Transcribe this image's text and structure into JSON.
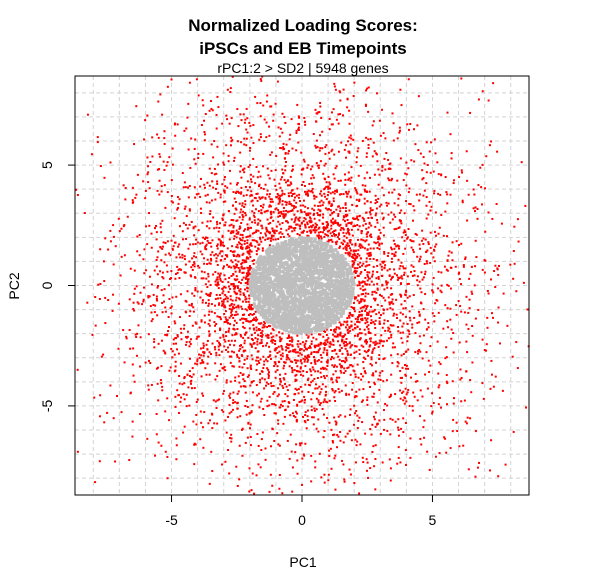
{
  "chart_data": {
    "type": "scatter",
    "title": [
      "Normalized Loading Scores:",
      "iPSCs and EB Timepoints"
    ],
    "subtitle": "rPC1:2 > SD2 | 5948 genes",
    "xlabel": "PC1",
    "ylabel": "PC2",
    "xlim": [
      -8.7,
      8.7
    ],
    "ylim": [
      -8.7,
      8.7
    ],
    "x_ticks": [
      -5,
      0,
      5
    ],
    "y_ticks": [
      -5,
      0,
      5
    ],
    "x_tick_labels": [
      "-5",
      "0",
      "5"
    ],
    "y_tick_labels": [
      "-5",
      "0",
      "5"
    ],
    "grid": true,
    "gene_count": 5948,
    "sd2_radius": 2.0,
    "series": [
      {
        "name": "genes with rPC1:2 > SD2",
        "color": "#ff0000",
        "approx_count": 3400,
        "distribution": "radial, dense just outside SD2 circle and thinning toward plot edges",
        "radius_range": [
          2.0,
          12.0
        ]
      },
      {
        "name": "genes within SD2",
        "color": "#bebebe",
        "approx_count": 2548,
        "distribution": "dense filled disk centered at origin",
        "radius_range": [
          0,
          2.0
        ]
      }
    ]
  },
  "colors": {
    "outer_points": "#ff0000",
    "inner_points": "#bebebe",
    "grid": "#d3d3d3",
    "axis": "#000000",
    "background": "#ffffff"
  }
}
